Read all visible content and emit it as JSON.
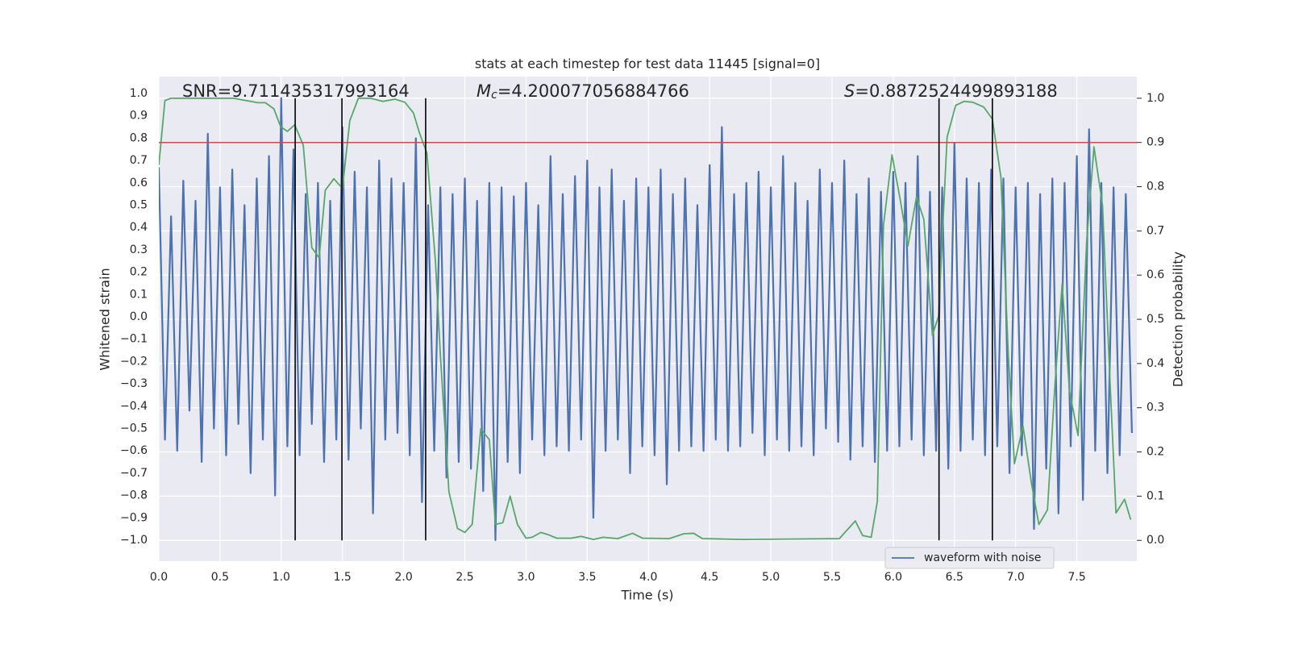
{
  "chart_data": {
    "type": "line",
    "title": "stats at each timestep for test data 11445 [signal=0]",
    "xlabel": "Time (s)",
    "ylabel": "Whitened strain",
    "y2label": "Detection probability",
    "annotations": [
      {
        "text": "SNR=9.711435317993164"
      },
      {
        "italic": "M",
        "sub": "c",
        "text": "=4.200077056884766"
      },
      {
        "italic": "S",
        "text": "=0.8872524499893188"
      }
    ],
    "xlim": [
      0,
      7.99
    ],
    "ylim": [
      -1.094,
      1.076
    ],
    "y2lim": [
      -0.047,
      1.049
    ],
    "grid": true,
    "background": "#eaeaf2",
    "legend": "lower right",
    "xticks": [
      {
        "value": 0,
        "label": "0.0"
      },
      {
        "value": 0.5,
        "label": "0.5"
      },
      {
        "value": 1,
        "label": "1.0"
      },
      {
        "value": 1.5,
        "label": "1.5"
      },
      {
        "value": 2,
        "label": "2.0"
      },
      {
        "value": 2.5,
        "label": "2.5"
      },
      {
        "value": 3,
        "label": "3.0"
      },
      {
        "value": 3.5,
        "label": "3.5"
      },
      {
        "value": 4,
        "label": "4.0"
      },
      {
        "value": 4.5,
        "label": "4.5"
      },
      {
        "value": 5,
        "label": "5.0"
      },
      {
        "value": 5.5,
        "label": "5.5"
      },
      {
        "value": 6,
        "label": "6.0"
      },
      {
        "value": 6.5,
        "label": "6.5"
      },
      {
        "value": 7,
        "label": "7.0"
      },
      {
        "value": 7.5,
        "label": "7.5"
      }
    ],
    "yticks": [
      {
        "value": 1,
        "label": "1.0"
      },
      {
        "value": 0.9,
        "label": "0.9"
      },
      {
        "value": 0.8,
        "label": "0.8"
      },
      {
        "value": 0.7,
        "label": "0.7"
      },
      {
        "value": 0.6,
        "label": "0.6"
      },
      {
        "value": 0.5,
        "label": "0.5"
      },
      {
        "value": 0.4,
        "label": "0.4"
      },
      {
        "value": 0.3,
        "label": "0.3"
      },
      {
        "value": 0.2,
        "label": "0.2"
      },
      {
        "value": 0.1,
        "label": "0.1"
      },
      {
        "value": 0,
        "label": "0.0"
      },
      {
        "value": -0.1,
        "label": "−0.1"
      },
      {
        "value": -0.2,
        "label": "−0.2"
      },
      {
        "value": -0.3,
        "label": "−0.3"
      },
      {
        "value": -0.4,
        "label": "−0.4"
      },
      {
        "value": -0.5,
        "label": "−0.5"
      },
      {
        "value": -0.6,
        "label": "−0.6"
      },
      {
        "value": -0.7,
        "label": "−0.7"
      },
      {
        "value": -0.8,
        "label": "−0.8"
      },
      {
        "value": -0.9,
        "label": "−0.9"
      },
      {
        "value": -1,
        "label": "−1.0"
      }
    ],
    "y2ticks": [
      {
        "value": 0,
        "label": "0.0"
      },
      {
        "value": 0.1,
        "label": "0.1"
      },
      {
        "value": 0.2,
        "label": "0.2"
      },
      {
        "value": 0.3,
        "label": "0.3"
      },
      {
        "value": 0.4,
        "label": "0.4"
      },
      {
        "value": 0.5,
        "label": "0.5"
      },
      {
        "value": 0.6,
        "label": "0.6"
      },
      {
        "value": 0.7,
        "label": "0.7"
      },
      {
        "value": 0.8,
        "label": "0.8"
      },
      {
        "value": 0.9,
        "label": "0.9"
      },
      {
        "value": 1,
        "label": "1.0"
      }
    ],
    "hline": {
      "value": 0.9,
      "axis": "y2",
      "color": "#c44e52"
    },
    "vlines": {
      "x": [
        1.114,
        1.496,
        2.18,
        6.374,
        6.81
      ],
      "span": [
        0,
        1
      ],
      "axis": "y2",
      "color": "#000000"
    },
    "series": [
      {
        "name": "waveform with noise",
        "color": "#4c72b0",
        "x": [
          0,
          0.05,
          0.1,
          0.15,
          0.2,
          0.25,
          0.3,
          0.35,
          0.4,
          0.45,
          0.5,
          0.55,
          0.6,
          0.65,
          0.7,
          0.75,
          0.8,
          0.85,
          0.9,
          0.95,
          1,
          1.05,
          1.1,
          1.15,
          1.2,
          1.25,
          1.3,
          1.35,
          1.4,
          1.45,
          1.5,
          1.55,
          1.6,
          1.65,
          1.7,
          1.75,
          1.8,
          1.85,
          1.9,
          1.95,
          2,
          2.05,
          2.1,
          2.15,
          2.2,
          2.25,
          2.3,
          2.35,
          2.4,
          2.45,
          2.5,
          2.55,
          2.6,
          2.65,
          2.7,
          2.75,
          2.8,
          2.85,
          2.9,
          2.95,
          3,
          3.05,
          3.1,
          3.15,
          3.2,
          3.25,
          3.3,
          3.35,
          3.4,
          3.45,
          3.5,
          3.55,
          3.6,
          3.65,
          3.7,
          3.75,
          3.8,
          3.85,
          3.9,
          3.95,
          4,
          4.05,
          4.1,
          4.15,
          4.2,
          4.25,
          4.3,
          4.35,
          4.4,
          4.45,
          4.5,
          4.55,
          4.6,
          4.65,
          4.7,
          4.75,
          4.8,
          4.85,
          4.9,
          4.95,
          5,
          5.05,
          5.1,
          5.15,
          5.2,
          5.25,
          5.3,
          5.35,
          5.4,
          5.45,
          5.5,
          5.55,
          5.6,
          5.65,
          5.7,
          5.75,
          5.8,
          5.85,
          5.9,
          5.95,
          6,
          6.05,
          6.1,
          6.15,
          6.2,
          6.25,
          6.3,
          6.35,
          6.4,
          6.45,
          6.5,
          6.55,
          6.6,
          6.65,
          6.7,
          6.75,
          6.8,
          6.85,
          6.9,
          6.95,
          7,
          7.05,
          7.1,
          7.15,
          7.2,
          7.25,
          7.3,
          7.35,
          7.4,
          7.45,
          7.5,
          7.55,
          7.6,
          7.65,
          7.7,
          7.75,
          7.8,
          7.85,
          7.9,
          7.95
        ],
        "values": [
          0.67,
          -0.55,
          0.45,
          -0.6,
          0.61,
          -0.42,
          0.52,
          -0.65,
          0.82,
          -0.5,
          0.58,
          -0.62,
          0.66,
          -0.48,
          0.5,
          -0.7,
          0.62,
          -0.55,
          0.72,
          -0.8,
          0.98,
          -0.58,
          0.75,
          -0.62,
          0.55,
          -0.48,
          0.6,
          -0.65,
          0.52,
          -0.55,
          0.85,
          -0.64,
          0.65,
          -0.5,
          0.58,
          -0.88,
          0.7,
          -0.55,
          0.62,
          -0.52,
          0.6,
          -0.62,
          0.8,
          -0.83,
          0.5,
          -0.6,
          0.58,
          -0.72,
          0.55,
          -0.65,
          0.62,
          -0.68,
          0.52,
          -0.78,
          0.6,
          -1.0,
          0.58,
          -0.65,
          0.54,
          -0.7,
          0.6,
          -0.55,
          0.5,
          -0.62,
          0.72,
          -0.58,
          0.55,
          -0.6,
          0.63,
          -0.55,
          0.7,
          -0.9,
          0.58,
          -0.6,
          0.66,
          -0.55,
          0.52,
          -0.7,
          0.62,
          -0.58,
          0.58,
          -0.62,
          0.66,
          -0.75,
          0.55,
          -0.6,
          0.62,
          -0.58,
          0.5,
          -0.6,
          0.68,
          -0.55,
          0.85,
          -0.6,
          0.55,
          -0.58,
          0.6,
          -0.52,
          0.65,
          -0.62,
          0.58,
          -0.55,
          0.72,
          -0.6,
          0.6,
          -0.58,
          0.52,
          -0.62,
          0.66,
          -0.5,
          0.6,
          -0.56,
          0.7,
          -0.64,
          0.55,
          -0.58,
          0.62,
          -0.65,
          0.56,
          -0.6,
          0.65,
          -0.58,
          0.6,
          -0.55,
          0.72,
          -0.62,
          0.56,
          -0.6,
          0.58,
          -0.68,
          0.78,
          -0.6,
          0.62,
          -0.55,
          0.6,
          -0.62,
          0.66,
          -0.58,
          0.62,
          -0.7,
          0.58,
          -0.62,
          0.6,
          -0.95,
          0.55,
          -0.68,
          0.62,
          -0.88,
          0.6,
          -0.58,
          0.72,
          -0.82,
          0.84,
          -0.6,
          0.6,
          -0.7,
          0.58,
          -0.62,
          0.55,
          -0.52
        ]
      },
      {
        "color": "#55a868",
        "axis": "y2",
        "x": [
          0,
          0.05,
          0.1,
          0.28,
          0.61,
          0.81,
          0.87,
          0.94,
          0.995,
          1.05,
          1.11,
          1.18,
          1.25,
          1.31,
          1.36,
          1.43,
          1.5,
          1.56,
          1.63,
          1.73,
          1.83,
          1.93,
          2.01,
          2.08,
          2.13,
          2.19,
          2.26,
          2.3,
          2.37,
          2.44,
          2.5,
          2.56,
          2.63,
          2.7,
          2.75,
          2.81,
          2.87,
          2.93,
          3,
          3.05,
          3.12,
          3.18,
          3.25,
          3.37,
          3.45,
          3.55,
          3.63,
          3.75,
          3.87,
          3.95,
          4.17,
          4.29,
          4.37,
          4.44,
          4.77,
          5.56,
          5.69,
          5.75,
          5.82,
          5.87,
          5.92,
          5.99,
          6.06,
          6.12,
          6.19,
          6.25,
          6.32,
          6.37,
          6.44,
          6.51,
          6.58,
          6.65,
          6.74,
          6.81,
          6.88,
          6.94,
          6.99,
          7.06,
          7.13,
          7.19,
          7.26,
          7.32,
          7.38,
          7.44,
          7.51,
          7.58,
          7.64,
          7.71,
          7.77,
          7.82,
          7.89,
          7.94
        ],
        "values": [
          0.849,
          0.995,
          1.0,
          1.0,
          1.0,
          0.99,
          0.99,
          0.976,
          0.936,
          0.925,
          0.94,
          0.894,
          0.662,
          0.639,
          0.792,
          0.818,
          0.796,
          0.949,
          1.0,
          1.0,
          0.993,
          0.998,
          0.991,
          0.967,
          0.921,
          0.876,
          0.63,
          0.42,
          0.11,
          0.027,
          0.018,
          0.036,
          0.252,
          0.228,
          0.036,
          0.04,
          0.1,
          0.036,
          0.005,
          0.007,
          0.018,
          0.013,
          0.005,
          0.005,
          0.009,
          0.002,
          0.007,
          0.004,
          0.016,
          0.005,
          0.004,
          0.015,
          0.016,
          0.004,
          0.002,
          0.004,
          0.044,
          0.011,
          0.007,
          0.088,
          0.712,
          0.872,
          0.766,
          0.666,
          0.777,
          0.726,
          0.464,
          0.507,
          0.912,
          0.984,
          0.993,
          0.991,
          0.98,
          0.953,
          0.821,
          0.42,
          0.173,
          0.259,
          0.128,
          0.036,
          0.069,
          0.347,
          0.58,
          0.338,
          0.237,
          0.675,
          0.89,
          0.757,
          0.365,
          0.062,
          0.093,
          0.047
        ]
      }
    ]
  }
}
